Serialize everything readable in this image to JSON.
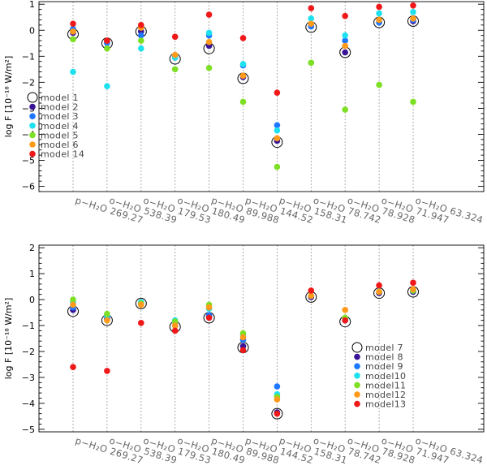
{
  "chart_data": [
    {
      "type": "scatter",
      "id": "top",
      "ylabel": "log F [10⁻¹⁸ W/m²]",
      "ylim": [
        -6.2,
        1.1
      ],
      "yticks": [
        1,
        0,
        -1,
        -2,
        -3,
        -4,
        -5,
        -6
      ],
      "categories": [
        "p−H₂O 269.27",
        "o−H₂O 538.39",
        "o−H₂O 179.53",
        "o−H₂O 180.49",
        "p−H₂O 89.988",
        "p−H₂O 144.52",
        "p−H₂O 158.31",
        "o−H₂O 78.742",
        "o−H₂O 78.928",
        "o−H₂O 71.947",
        "o−H₂O 63.324"
      ],
      "legend_position": "left-middle",
      "series": [
        {
          "name": "model 1",
          "marker": "open-circle",
          "color": "#000000",
          "values": [
            -0.15,
            -0.5,
            -0.05,
            -1.1,
            -0.7,
            -1.85,
            -4.3,
            0.12,
            -0.85,
            0.3,
            0.35
          ]
        },
        {
          "name": "model 2",
          "marker": "filled-circle",
          "color": "#3a1496",
          "values": [
            -0.1,
            -0.45,
            -0.05,
            -1.05,
            -0.6,
            -1.8,
            -4.25,
            0.15,
            -0.85,
            0.3,
            0.35
          ]
        },
        {
          "name": "model 3",
          "marker": "filled-circle",
          "color": "#1e78ff",
          "values": [
            0.05,
            -0.5,
            -0.2,
            -1.0,
            -0.2,
            -1.35,
            -3.65,
            0.15,
            -0.4,
            0.3,
            0.4
          ]
        },
        {
          "name": "model 4",
          "marker": "filled-circle",
          "color": "#1ee1f0",
          "values": [
            -1.6,
            -2.15,
            -0.7,
            -1.05,
            -0.1,
            -1.3,
            -3.85,
            0.45,
            -0.2,
            0.65,
            0.7
          ]
        },
        {
          "name": "model 5",
          "marker": "filled-circle",
          "color": "#7ee024",
          "values": [
            -0.35,
            -0.7,
            -0.4,
            -1.5,
            -1.45,
            -2.75,
            -5.25,
            -1.25,
            -3.05,
            -2.1,
            -2.75
          ]
        },
        {
          "name": "model 6",
          "marker": "filled-circle",
          "color": "#ff9a1a",
          "values": [
            -0.05,
            -0.4,
            0.1,
            -0.95,
            -0.45,
            -1.75,
            -4.15,
            0.25,
            -0.6,
            0.4,
            0.45
          ]
        },
        {
          "name": "model 14",
          "marker": "filled-circle",
          "color": "#f01818",
          "values": [
            0.25,
            -0.4,
            0.2,
            -0.25,
            0.6,
            -0.3,
            -2.4,
            0.85,
            0.55,
            0.9,
            0.95
          ]
        }
      ]
    },
    {
      "type": "scatter",
      "id": "bottom",
      "ylabel": "log F [10⁻¹⁸ W/m²]",
      "ylim": [
        -5.1,
        2.1
      ],
      "yticks": [
        2,
        1,
        0,
        -1,
        -2,
        -3,
        -4,
        -5
      ],
      "categories": [
        "p−H₂O 269.27",
        "o−H₂O 538.39",
        "o−H₂O 179.53",
        "o−H₂O 180.49",
        "p−H₂O 89.988",
        "p−H₂O 144.52",
        "p−H₂O 158.31",
        "o−H₂O 78.742",
        "o−H₂O 78.928",
        "o−H₂O 71.947",
        "o−H₂O 63.324"
      ],
      "legend_position": "right-lower",
      "series": [
        {
          "name": "model 7",
          "marker": "open-circle",
          "color": "#000000",
          "values": [
            -0.45,
            -0.8,
            -0.15,
            -1.05,
            -0.7,
            -1.85,
            -4.4,
            0.1,
            -0.85,
            0.25,
            0.3
          ]
        },
        {
          "name": "model 8",
          "marker": "filled-circle",
          "color": "#3a1496",
          "values": [
            -0.4,
            -0.75,
            -0.15,
            -1.0,
            -0.65,
            -1.8,
            -4.35,
            0.1,
            -0.8,
            0.25,
            0.3
          ]
        },
        {
          "name": "model 9",
          "marker": "filled-circle",
          "color": "#1e78ff",
          "values": [
            -0.3,
            -0.65,
            -0.1,
            -0.85,
            -0.6,
            -1.55,
            -3.35,
            0.15,
            -0.75,
            0.3,
            0.35
          ]
        },
        {
          "name": "model10",
          "marker": "filled-circle",
          "color": "#1ee1f0",
          "values": [
            -0.1,
            -0.6,
            -0.1,
            -0.8,
            -0.35,
            -1.35,
            -3.65,
            0.15,
            -0.75,
            0.3,
            0.35
          ]
        },
        {
          "name": "model11",
          "marker": "filled-circle",
          "color": "#7ee024",
          "values": [
            0.0,
            -0.55,
            -0.15,
            -0.85,
            -0.2,
            -1.3,
            -3.75,
            0.15,
            -0.7,
            0.3,
            0.35
          ]
        },
        {
          "name": "model12",
          "marker": "filled-circle",
          "color": "#ff9a1a",
          "values": [
            -0.2,
            -0.8,
            -0.2,
            -1.0,
            -0.3,
            -1.45,
            -3.85,
            0.15,
            -0.4,
            0.3,
            0.4
          ]
        },
        {
          "name": "model13",
          "marker": "filled-circle",
          "color": "#f01818",
          "values": [
            -2.6,
            -2.75,
            -0.9,
            -1.2,
            -0.7,
            -1.95,
            -4.4,
            0.35,
            -0.8,
            0.55,
            0.65
          ]
        }
      ]
    }
  ]
}
